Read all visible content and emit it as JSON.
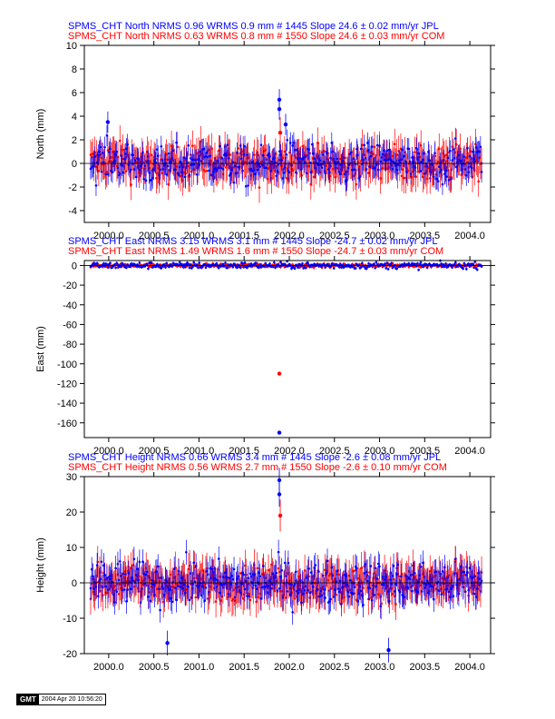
{
  "colors": {
    "jpl": "#0000ff",
    "com": "#ff0000",
    "axis": "#000000"
  },
  "chart_data": [
    {
      "type": "scatter",
      "component": "North",
      "ylabel": "North (mm)",
      "xlim": [
        1999.73,
        2004.23
      ],
      "ylim": [
        -5,
        10
      ],
      "yticks": [
        -4,
        -2,
        0,
        2,
        4,
        6,
        8,
        10
      ],
      "xticks": [
        2000.0,
        2000.5,
        2001.0,
        2001.5,
        2002.0,
        2002.5,
        2003.0,
        2003.5,
        2004.0
      ],
      "xtick_labels": [
        "2000.0",
        "2000.5",
        "2001.0",
        "2001.5",
        "2002.0",
        "2002.5",
        "2003.0",
        "2003.5",
        "2004.0"
      ],
      "x_range": [
        1999.8,
        2004.13
      ],
      "series": [
        {
          "name": "JPL",
          "title": "SPMS_CHT North NRMS 0.96 WRMS  0.9 mm # 1445 Slope   24.6 ±  0.02 mm/yr JPL",
          "n": 1445,
          "wrms": 0.9,
          "err": 0.9,
          "outliers": [
            [
              2001.89,
              5.4
            ],
            [
              2001.89,
              4.6
            ],
            [
              2001.96,
              3.3
            ],
            [
              1999.99,
              3.5
            ]
          ]
        },
        {
          "name": "COM",
          "title": "SPMS_CHT North NRMS 0.63 WRMS  0.8 mm # 1550 Slope   24.6 ±  0.03 mm/yr COM",
          "n": 1550,
          "wrms": 0.8,
          "err": 1.3,
          "outliers": [
            [
              2001.9,
              2.6
            ]
          ]
        }
      ]
    },
    {
      "type": "scatter",
      "component": "East",
      "ylabel": "East (mm)",
      "xlim": [
        1999.73,
        2004.23
      ],
      "ylim": [
        -175,
        5
      ],
      "yticks": [
        -160,
        -140,
        -120,
        -100,
        -80,
        -60,
        -40,
        -20,
        0
      ],
      "xticks": [
        2000.0,
        2000.5,
        2001.0,
        2001.5,
        2002.0,
        2002.5,
        2003.0,
        2003.5,
        2004.0
      ],
      "xtick_labels": [
        "2000.0",
        "2000.5",
        "2001.0",
        "2001.5",
        "2002.0",
        "2002.5",
        "2003.0",
        "2003.5",
        "2004.0"
      ],
      "x_range": [
        1999.8,
        2004.13
      ],
      "series": [
        {
          "name": "JPL",
          "title": "SPMS_CHT East NRMS 3.15 WRMS  3.1 mm # 1445 Slope  -24.7 ±  0.02 mm/yr JPL",
          "n": 1445,
          "wrms": 3.1,
          "err": 1.5,
          "outliers": [
            [
              2001.89,
              -170
            ]
          ]
        },
        {
          "name": "COM",
          "title": "SPMS_CHT East NRMS 1.49 WRMS  1.6 mm # 1550 Slope  -24.7 ±  0.03 mm/yr COM",
          "n": 1550,
          "wrms": 1.6,
          "err": 1.8,
          "outliers": [
            [
              2001.89,
              -110
            ]
          ]
        }
      ]
    },
    {
      "type": "scatter",
      "component": "Height",
      "ylabel": "Height (mm)",
      "xlim": [
        1999.73,
        2004.23
      ],
      "ylim": [
        -20,
        30
      ],
      "yticks": [
        -20,
        -10,
        0,
        10,
        20,
        30
      ],
      "xticks": [
        2000.0,
        2000.5,
        2001.0,
        2001.5,
        2002.0,
        2002.5,
        2003.0,
        2003.5,
        2004.0
      ],
      "xtick_labels": [
        "2000.0",
        "2000.5",
        "2001.0",
        "2001.5",
        "2002.0",
        "2002.5",
        "2003.0",
        "2003.5",
        "2004.0"
      ],
      "x_range": [
        1999.8,
        2004.13
      ],
      "series": [
        {
          "name": "JPL",
          "title": "SPMS_CHT Height NRMS 0.66 WRMS  3.4 mm # 1445 Slope   -2.6 ±  0.08 mm/yr JPL",
          "n": 1445,
          "wrms": 3.4,
          "err": 3.5,
          "outliers": [
            [
              2001.89,
              29
            ],
            [
              2001.89,
              25
            ],
            [
              2000.65,
              -17
            ],
            [
              2003.1,
              -19
            ]
          ]
        },
        {
          "name": "COM",
          "title": "SPMS_CHT Height NRMS 0.56 WRMS  2.7 mm # 1550 Slope   -2.6 ±  0.10 mm/yr COM",
          "n": 1550,
          "wrms": 2.7,
          "err": 4.5,
          "outliers": [
            [
              2001.9,
              19
            ]
          ]
        }
      ]
    }
  ],
  "footer": {
    "logo": "GMT",
    "timestamp": "2004 Apr 20 10:56:20"
  }
}
